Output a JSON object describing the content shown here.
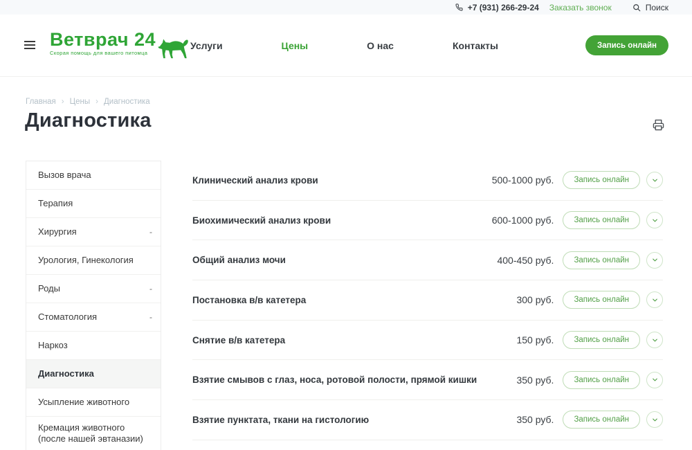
{
  "topbar": {
    "phone": "+7 (931) 266-29-24",
    "callback_label": "Заказать звонок",
    "search_label": "Поиск"
  },
  "header": {
    "logo_title": "Ветврач 24",
    "logo_tagline": "Скорая помощь для вашего питомца",
    "nav": [
      {
        "label": "Услуги",
        "active": false
      },
      {
        "label": "Цены",
        "active": true
      },
      {
        "label": "О нас",
        "active": false
      },
      {
        "label": "Контакты",
        "active": false
      }
    ],
    "cta_label": "Запись онлайн"
  },
  "breadcrumb": {
    "separator": "›",
    "items": [
      "Главная",
      "Цены",
      "Диагностика"
    ]
  },
  "page_title": "Диагностика",
  "sidebar": {
    "submenu_marker": "-",
    "items": [
      {
        "label": "Вызов врача",
        "has_children": false,
        "active": false
      },
      {
        "label": "Терапия",
        "has_children": false,
        "active": false
      },
      {
        "label": "Хирургия",
        "has_children": true,
        "active": false
      },
      {
        "label": "Урология, Гинекология",
        "has_children": false,
        "active": false
      },
      {
        "label": "Роды",
        "has_children": true,
        "active": false
      },
      {
        "label": "Стоматология",
        "has_children": true,
        "active": false
      },
      {
        "label": "Наркоз",
        "has_children": false,
        "active": false
      },
      {
        "label": "Диагностика",
        "has_children": false,
        "active": true
      },
      {
        "label": "Усыпление животного",
        "has_children": false,
        "active": false
      },
      {
        "label": "Кремация животного (после нашей эвтаназии)",
        "has_children": false,
        "active": false
      }
    ]
  },
  "price_list": {
    "book_label": "Запись онлайн",
    "items": [
      {
        "name": "Клинический анализ крови",
        "price": "500-1000 руб."
      },
      {
        "name": "Биохимический анализ крови",
        "price": "600-1000 руб."
      },
      {
        "name": "Общий анализ мочи",
        "price": "400-450 руб."
      },
      {
        "name": "Постановка в/в катетера",
        "price": "300 руб."
      },
      {
        "name": "Снятие в/в катетера",
        "price": "150 руб."
      },
      {
        "name": "Взятие смывов с глаз, носа, ротовой полости, прямой кишки",
        "price": "350 руб."
      },
      {
        "name": "Взятие пунктата, ткани на гистологию",
        "price": "350 руб."
      }
    ]
  },
  "icons": {
    "phone": "phone-icon",
    "search": "magnifier-icon",
    "menu": "hamburger-icon",
    "print": "printer-icon",
    "expand": "chevron-down-icon",
    "logo_animal": "dog-silhouette-icon"
  },
  "colors": {
    "brand_green": "#3aa335",
    "cta_green": "#43a336",
    "outline_green_border": "#bedcb5",
    "outline_green_text": "#53a048",
    "topbar_bg": "#f7f9fb",
    "text_dark": "#33383d",
    "breadcrumb_gray": "#b4c0c8",
    "divider": "#efefec"
  }
}
